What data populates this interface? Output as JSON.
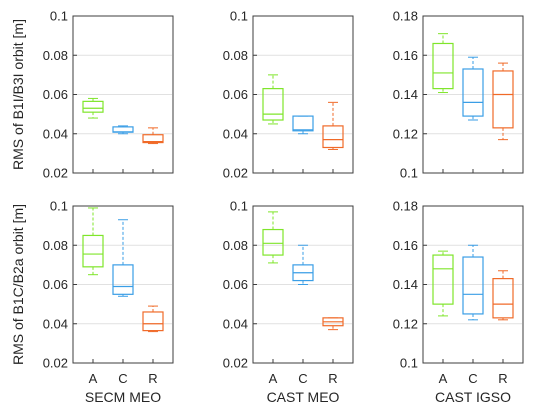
{
  "colors": {
    "A": "#7fe52a",
    "C": "#3a9ee6",
    "R": "#f06a28"
  },
  "chart_data": [
    {
      "type": "box",
      "panel": "top-left",
      "ylabel": "RMS of B1I/B3I orbit [m]",
      "xlabel": "",
      "ylim": [
        0.02,
        0.1
      ],
      "yticks": [
        "0.02",
        "0.04",
        "0.06",
        "0.08",
        "0.1"
      ],
      "grid": true,
      "categories": [
        "A",
        "C",
        "R"
      ],
      "boxes": [
        {
          "category": "A",
          "min": 0.048,
          "q1": 0.051,
          "median": 0.053,
          "q3": 0.0565,
          "max": 0.058
        },
        {
          "category": "C",
          "min": 0.04,
          "q1": 0.0408,
          "median": 0.041,
          "q3": 0.0435,
          "max": 0.044
        },
        {
          "category": "R",
          "min": 0.035,
          "q1": 0.0355,
          "median": 0.036,
          "q3": 0.0395,
          "max": 0.043
        }
      ]
    },
    {
      "type": "box",
      "panel": "top-middle",
      "ylabel": "",
      "xlabel": "",
      "ylim": [
        0.02,
        0.1
      ],
      "yticks": [
        "0.02",
        "0.04",
        "0.06",
        "0.08",
        "0.1"
      ],
      "grid": true,
      "categories": [
        "A",
        "C",
        "R"
      ],
      "boxes": [
        {
          "category": "A",
          "min": 0.045,
          "q1": 0.047,
          "median": 0.05,
          "q3": 0.063,
          "max": 0.07
        },
        {
          "category": "C",
          "min": 0.04,
          "q1": 0.0415,
          "median": 0.042,
          "q3": 0.049,
          "max": 0.049
        },
        {
          "category": "R",
          "min": 0.032,
          "q1": 0.033,
          "median": 0.037,
          "q3": 0.044,
          "max": 0.056
        }
      ]
    },
    {
      "type": "box",
      "panel": "top-right",
      "ylabel": "",
      "xlabel": "",
      "ylim": [
        0.1,
        0.18
      ],
      "yticks": [
        "0.1",
        "0.12",
        "0.14",
        "0.16",
        "0.18"
      ],
      "grid": true,
      "categories": [
        "A",
        "C",
        "R"
      ],
      "boxes": [
        {
          "category": "A",
          "min": 0.141,
          "q1": 0.143,
          "median": 0.151,
          "q3": 0.166,
          "max": 0.171
        },
        {
          "category": "C",
          "min": 0.127,
          "q1": 0.129,
          "median": 0.136,
          "q3": 0.153,
          "max": 0.159
        },
        {
          "category": "R",
          "min": 0.117,
          "q1": 0.123,
          "median": 0.14,
          "q3": 0.152,
          "max": 0.156
        }
      ]
    },
    {
      "type": "box",
      "panel": "bottom-left",
      "ylabel": "RMS of B1C/B2a orbit [m]",
      "xlabel": "SECM MEO",
      "ylim": [
        0.02,
        0.1
      ],
      "yticks": [
        "0.02",
        "0.04",
        "0.06",
        "0.08",
        "0.1"
      ],
      "grid": true,
      "categories": [
        "A",
        "C",
        "R"
      ],
      "boxes": [
        {
          "category": "A",
          "min": 0.065,
          "q1": 0.069,
          "median": 0.0755,
          "q3": 0.085,
          "max": 0.099
        },
        {
          "category": "C",
          "min": 0.054,
          "q1": 0.055,
          "median": 0.059,
          "q3": 0.07,
          "max": 0.093
        },
        {
          "category": "R",
          "min": 0.036,
          "q1": 0.0365,
          "median": 0.04,
          "q3": 0.046,
          "max": 0.049
        }
      ]
    },
    {
      "type": "box",
      "panel": "bottom-middle",
      "ylabel": "",
      "xlabel": "CAST MEO",
      "ylim": [
        0.02,
        0.1
      ],
      "yticks": [
        "0.02",
        "0.04",
        "0.06",
        "0.08",
        "0.1"
      ],
      "grid": true,
      "categories": [
        "A",
        "C",
        "R"
      ],
      "boxes": [
        {
          "category": "A",
          "min": 0.071,
          "q1": 0.075,
          "median": 0.081,
          "q3": 0.088,
          "max": 0.097
        },
        {
          "category": "C",
          "min": 0.06,
          "q1": 0.062,
          "median": 0.066,
          "q3": 0.07,
          "max": 0.08
        },
        {
          "category": "R",
          "min": 0.037,
          "q1": 0.039,
          "median": 0.041,
          "q3": 0.043,
          "max": 0.043
        }
      ]
    },
    {
      "type": "box",
      "panel": "bottom-right",
      "ylabel": "",
      "xlabel": "CAST IGSO",
      "ylim": [
        0.1,
        0.18
      ],
      "yticks": [
        "0.1",
        "0.12",
        "0.14",
        "0.16",
        "0.18"
      ],
      "grid": true,
      "categories": [
        "A",
        "C",
        "R"
      ],
      "boxes": [
        {
          "category": "A",
          "min": 0.124,
          "q1": 0.13,
          "median": 0.148,
          "q3": 0.155,
          "max": 0.157
        },
        {
          "category": "C",
          "min": 0.122,
          "q1": 0.125,
          "median": 0.135,
          "q3": 0.154,
          "max": 0.16
        },
        {
          "category": "R",
          "min": 0.122,
          "q1": 0.123,
          "median": 0.13,
          "q3": 0.143,
          "max": 0.147
        }
      ]
    }
  ]
}
